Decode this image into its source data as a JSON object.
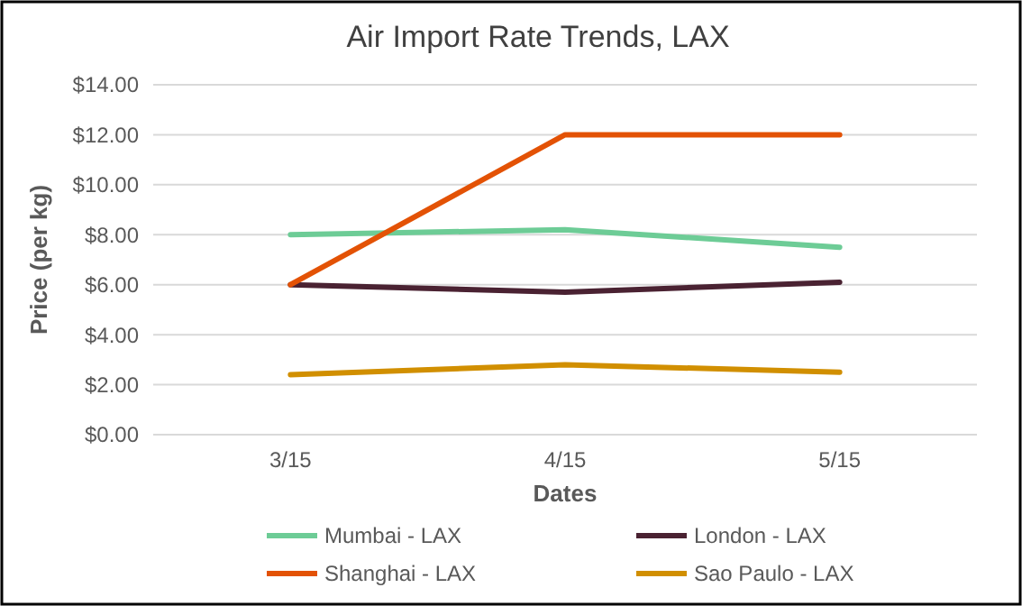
{
  "chart_data": {
    "type": "line",
    "title": "Air Import Rate Trends, LAX",
    "xlabel": "Dates",
    "ylabel": "Price (per kg)",
    "categories": [
      "3/15",
      "4/15",
      "5/15"
    ],
    "series": [
      {
        "name": "Mumbai - LAX",
        "color": "#6dcc96",
        "values": [
          8.0,
          8.2,
          7.5
        ]
      },
      {
        "name": "London - LAX",
        "color": "#4a2232",
        "values": [
          6.0,
          5.7,
          6.1
        ]
      },
      {
        "name": "Shanghai - LAX",
        "color": "#e35205",
        "values": [
          6.0,
          12.0,
          12.0
        ]
      },
      {
        "name": "Sao Paulo - LAX",
        "color": "#d18f00",
        "values": [
          2.4,
          2.8,
          2.5
        ]
      }
    ],
    "ylim": [
      0,
      14
    ],
    "yticks": [
      {
        "value": 0,
        "label": "$0.00"
      },
      {
        "value": 2,
        "label": "$2.00"
      },
      {
        "value": 4,
        "label": "$4.00"
      },
      {
        "value": 6,
        "label": "$6.00"
      },
      {
        "value": 8,
        "label": "$8.00"
      },
      {
        "value": 10,
        "label": "$10.00"
      },
      {
        "value": 12,
        "label": "$12.00"
      },
      {
        "value": 14,
        "label": "$14.00"
      }
    ],
    "grid": "y",
    "legend": "bottom",
    "line_style": "solid"
  }
}
